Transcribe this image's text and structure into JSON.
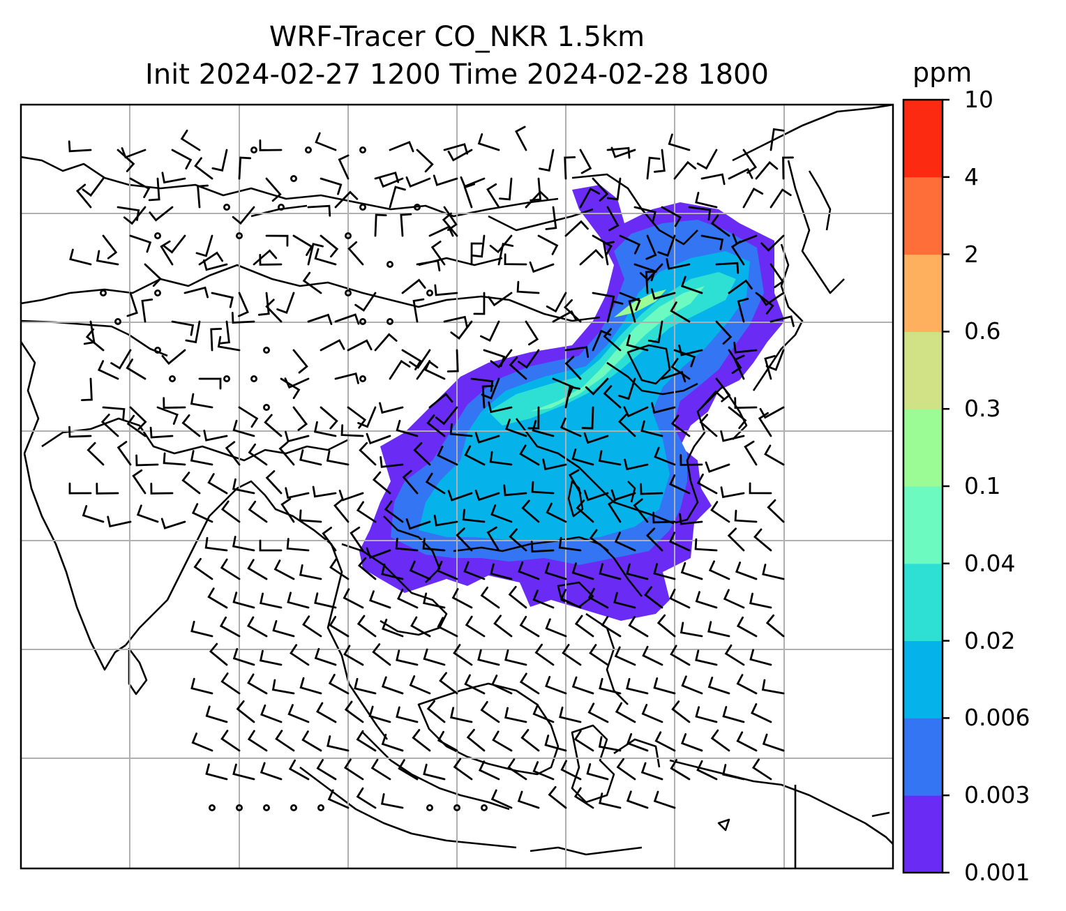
{
  "title_line1": "WRF-Tracer CO_NKR 1.5km",
  "title_line2": "Init 2024-02-27 1200 Time 2024-02-28 1800",
  "colorbar": {
    "unit": "ppm",
    "ticks": [
      "0.001",
      "0.003",
      "0.006",
      "0.02",
      "0.04",
      "0.1",
      "0.3",
      "0.6",
      "2",
      "4",
      "10"
    ],
    "colors": [
      "#6a2cf5",
      "#3375f2",
      "#05b2ea",
      "#2ee0d4",
      "#6cfac0",
      "#9bfb95",
      "#d0e285",
      "#feb05e",
      "#fe6e39",
      "#fd2a12"
    ]
  }
}
